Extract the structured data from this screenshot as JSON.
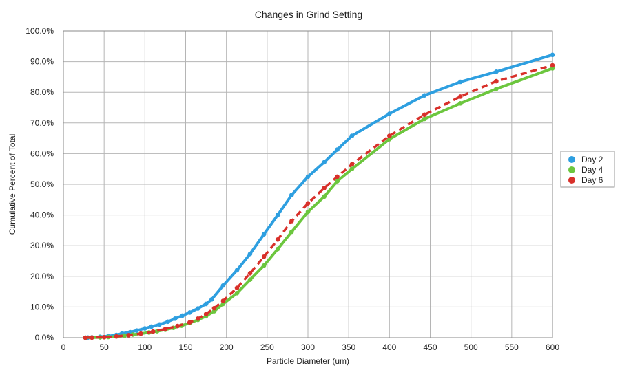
{
  "chart_data": {
    "type": "line",
    "title": "Changes in Grind Setting",
    "xlabel": "Particle Diameter (um)",
    "ylabel": "Cumulative Percent of Total",
    "xlim": [
      0,
      600
    ],
    "ylim": [
      0,
      100
    ],
    "x_ticks": [
      0,
      50,
      100,
      150,
      200,
      250,
      300,
      350,
      400,
      450,
      500,
      550,
      600
    ],
    "y_ticks": [
      0,
      10,
      20,
      30,
      40,
      50,
      60,
      70,
      80,
      90,
      100
    ],
    "x_tick_labels": [
      "0",
      "50",
      "100",
      "150",
      "200",
      "250",
      "300",
      "350",
      "400",
      "450",
      "500",
      "550",
      "600"
    ],
    "y_tick_labels": [
      "0.0%",
      "10.0%",
      "20.0%",
      "30.0%",
      "40.0%",
      "50.0%",
      "60.0%",
      "70.0%",
      "80.0%",
      "90.0%",
      "100.0%"
    ],
    "grid": true,
    "legend_position": "right",
    "series": [
      {
        "name": "Day 2",
        "color": "#2e9fe0",
        "dashed": false,
        "points": [
          [
            27,
            0
          ],
          [
            30,
            0.05
          ],
          [
            35,
            0.1
          ],
          [
            45,
            0.3
          ],
          [
            55,
            0.5
          ],
          [
            65,
            0.9
          ],
          [
            72,
            1.4
          ],
          [
            82,
            1.8
          ],
          [
            90,
            2.3
          ],
          [
            100,
            3.0
          ],
          [
            108,
            3.6
          ],
          [
            118,
            4.3
          ],
          [
            128,
            5.2
          ],
          [
            137,
            6.2
          ],
          [
            146,
            7.2
          ],
          [
            155,
            8.2
          ],
          [
            165,
            9.5
          ],
          [
            175,
            11.0
          ],
          [
            182,
            12.5
          ],
          [
            196,
            17.0
          ],
          [
            213,
            22.0
          ],
          [
            229,
            27.3
          ],
          [
            246,
            33.7
          ],
          [
            263,
            40.0
          ],
          [
            280,
            46.5
          ],
          [
            300,
            52.5
          ],
          [
            320,
            57.2
          ],
          [
            336,
            61.3
          ],
          [
            354,
            65.8
          ],
          [
            400,
            73.0
          ],
          [
            443,
            79.0
          ],
          [
            487,
            83.4
          ],
          [
            531,
            86.7
          ],
          [
            600,
            92.2
          ]
        ]
      },
      {
        "name": "Day 4",
        "color": "#6cc63e",
        "dashed": false,
        "points": [
          [
            27,
            0
          ],
          [
            35,
            0.05
          ],
          [
            45,
            0.1
          ],
          [
            55,
            0.2
          ],
          [
            65,
            0.4
          ],
          [
            75,
            0.7
          ],
          [
            85,
            1.0
          ],
          [
            95,
            1.3
          ],
          [
            105,
            1.7
          ],
          [
            115,
            2.1
          ],
          [
            125,
            2.6
          ],
          [
            135,
            3.2
          ],
          [
            145,
            3.9
          ],
          [
            155,
            4.8
          ],
          [
            165,
            5.8
          ],
          [
            175,
            7.0
          ],
          [
            185,
            8.6
          ],
          [
            196,
            11.0
          ],
          [
            213,
            14.5
          ],
          [
            229,
            18.9
          ],
          [
            246,
            23.5
          ],
          [
            263,
            28.9
          ],
          [
            280,
            34.5
          ],
          [
            300,
            41.0
          ],
          [
            320,
            46.0
          ],
          [
            336,
            51.0
          ],
          [
            354,
            55.0
          ],
          [
            400,
            64.7
          ],
          [
            443,
            71.3
          ],
          [
            487,
            76.4
          ],
          [
            531,
            81.1
          ],
          [
            600,
            87.8
          ]
        ]
      },
      {
        "name": "Day 6",
        "color": "#d8302a",
        "dashed": true,
        "points": [
          [
            27,
            0
          ],
          [
            35,
            0.05
          ],
          [
            50,
            0.15
          ],
          [
            65,
            0.4
          ],
          [
            80,
            0.8
          ],
          [
            95,
            1.3
          ],
          [
            110,
            2.0
          ],
          [
            125,
            2.8
          ],
          [
            140,
            3.8
          ],
          [
            155,
            5.0
          ],
          [
            165,
            6.2
          ],
          [
            175,
            7.7
          ],
          [
            185,
            9.6
          ],
          [
            196,
            12.0
          ],
          [
            213,
            16.2
          ],
          [
            229,
            21.0
          ],
          [
            246,
            26.4
          ],
          [
            263,
            32.0
          ],
          [
            280,
            38.0
          ],
          [
            300,
            43.8
          ],
          [
            320,
            48.8
          ],
          [
            336,
            52.5
          ],
          [
            354,
            56.5
          ],
          [
            400,
            65.8
          ],
          [
            443,
            72.7
          ],
          [
            487,
            78.6
          ],
          [
            531,
            83.6
          ],
          [
            600,
            88.8
          ]
        ]
      }
    ]
  }
}
